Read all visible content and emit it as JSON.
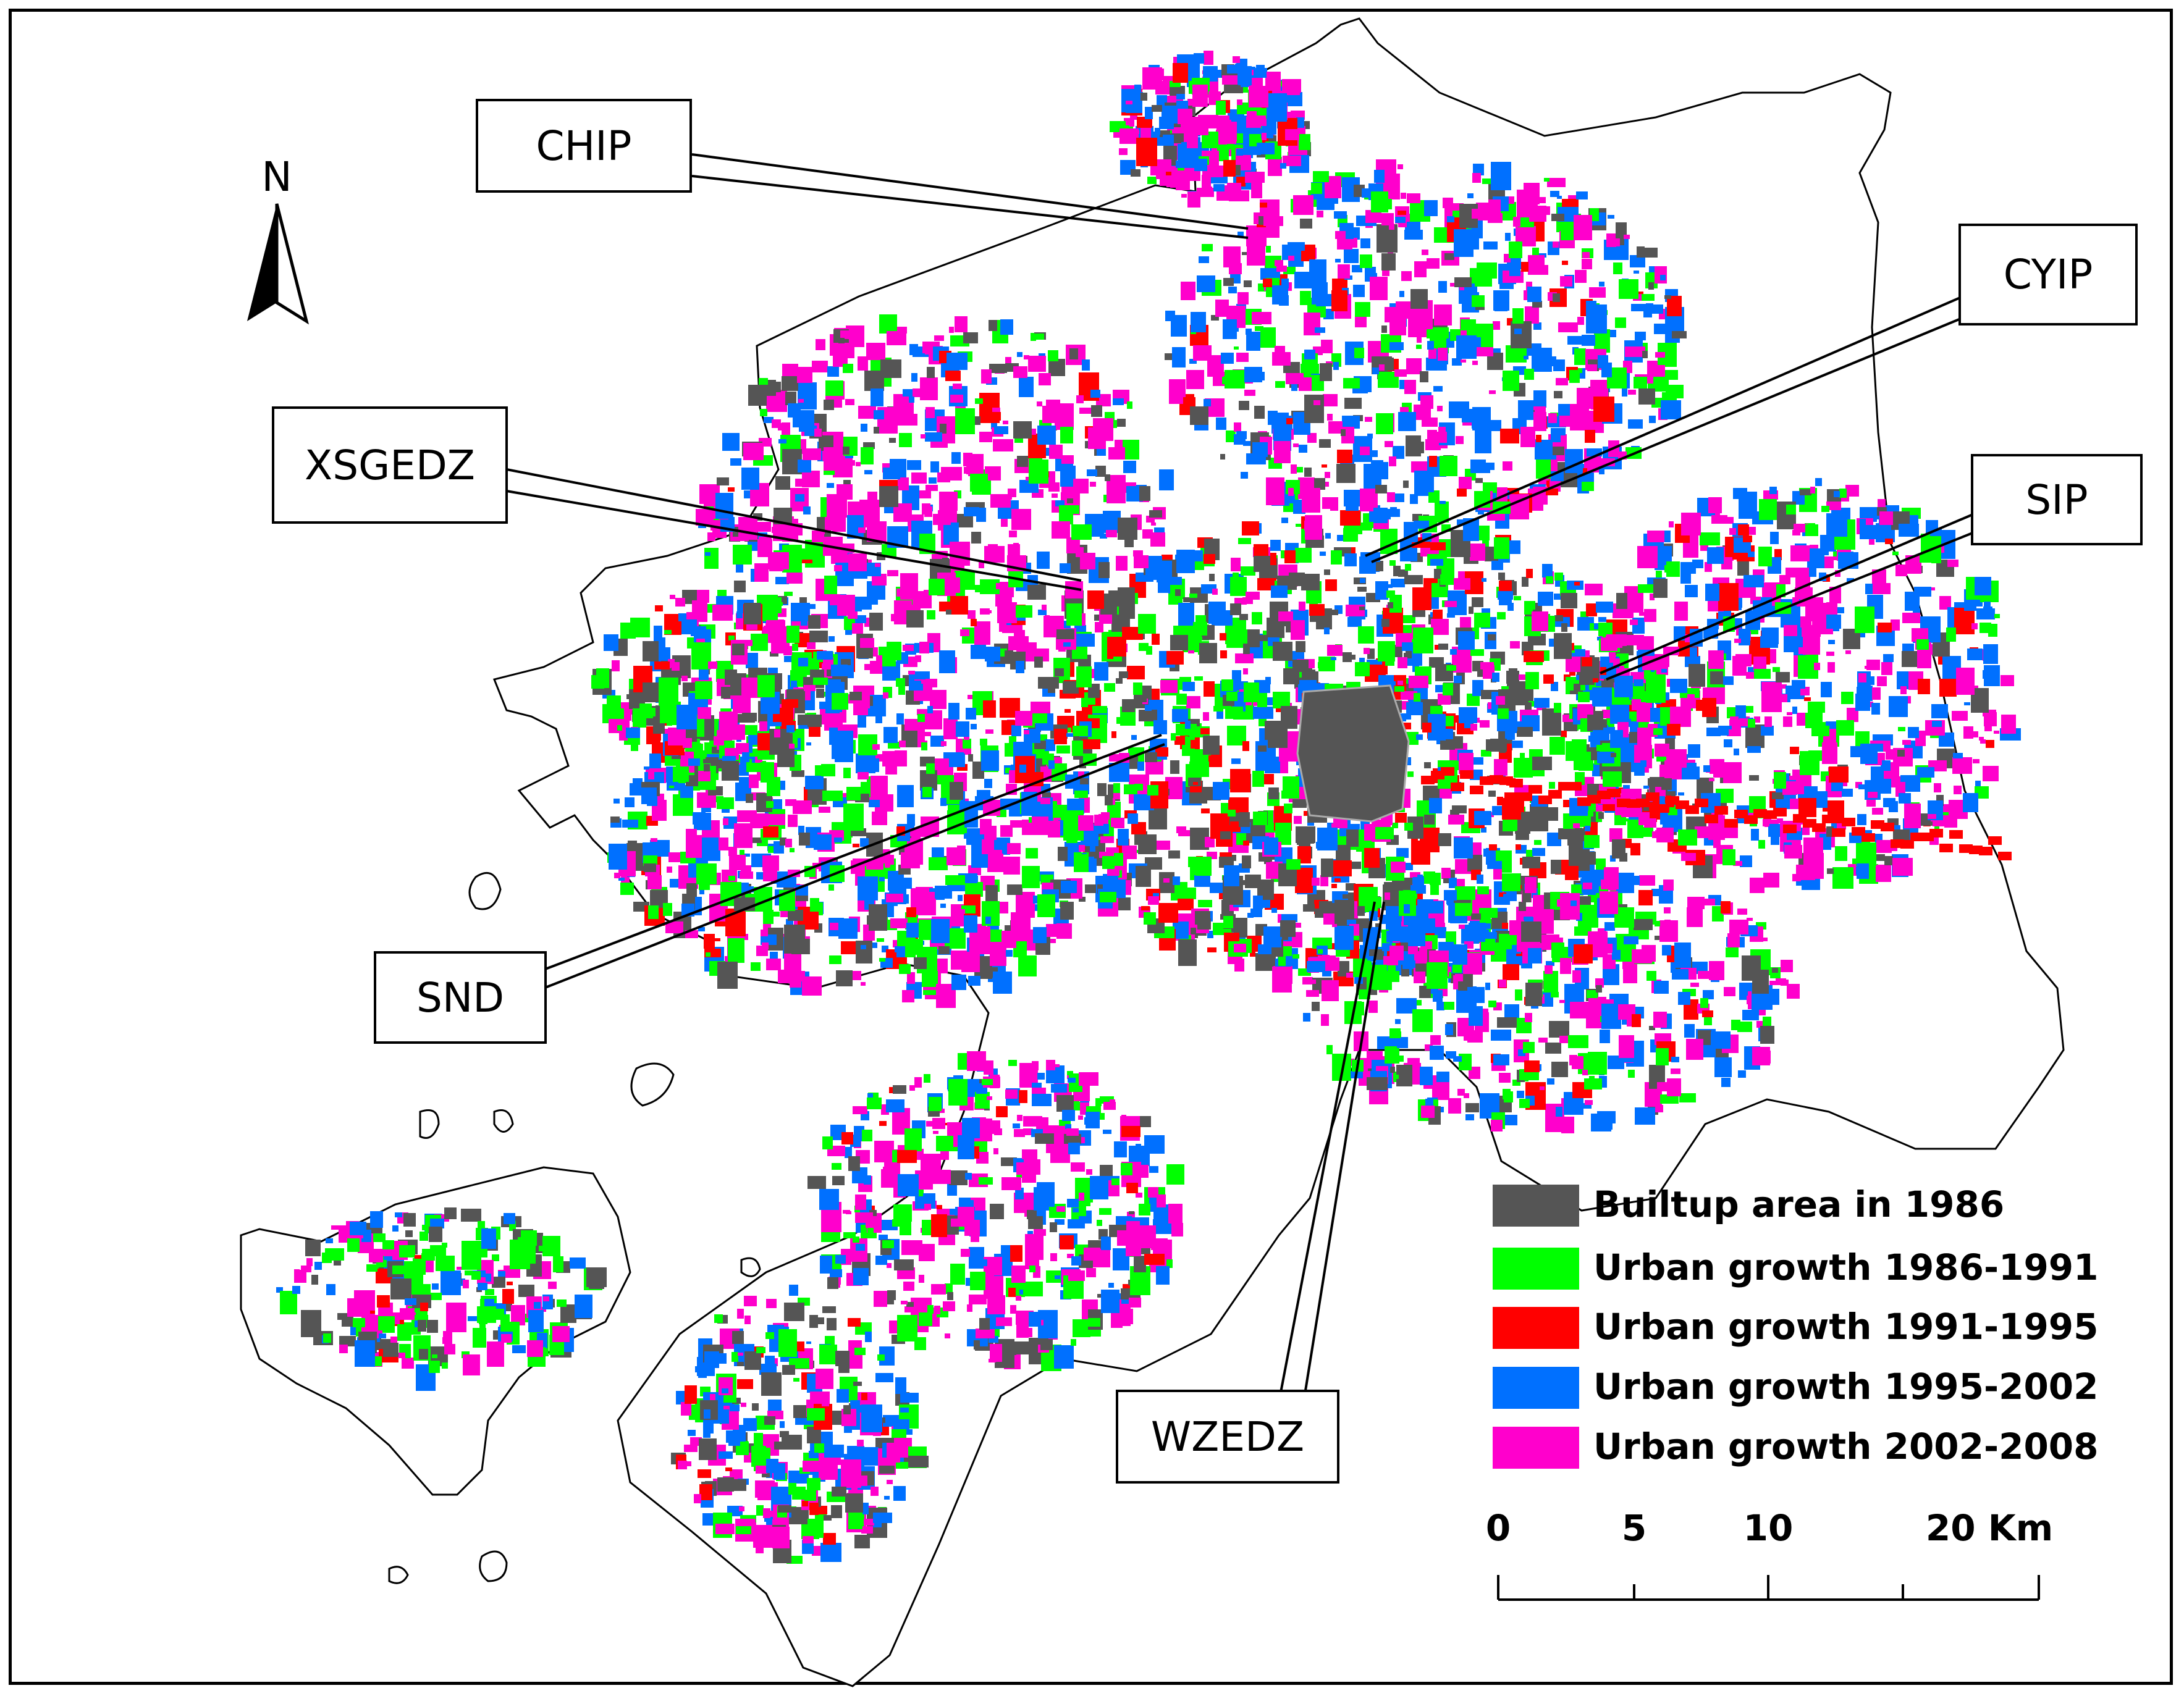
{
  "map": {
    "north_label": "N",
    "callouts": [
      {
        "id": "chip",
        "label": "CHIP"
      },
      {
        "id": "cyip",
        "label": "CYIP"
      },
      {
        "id": "xsgedz",
        "label": "XSGEDZ"
      },
      {
        "id": "sip",
        "label": "SIP"
      },
      {
        "id": "snd",
        "label": "SND"
      },
      {
        "id": "wzedz",
        "label": "WZEDZ"
      }
    ],
    "legend": [
      {
        "label": "Builtup area in 1986",
        "color": "#555555"
      },
      {
        "label": "Urban growth 1986-1991",
        "color": "#00ff00"
      },
      {
        "label": "Urban growth 1991-1995",
        "color": "#ff0000"
      },
      {
        "label": "Urban growth 1995-2002",
        "color": "#0070ff"
      },
      {
        "label": "Urban growth 2002-2008",
        "color": "#ff00cc"
      }
    ],
    "scale_bar": {
      "ticks": [
        "0",
        "5",
        "10",
        "20 Km"
      ],
      "values_km": [
        0,
        5,
        10,
        20
      ]
    }
  }
}
